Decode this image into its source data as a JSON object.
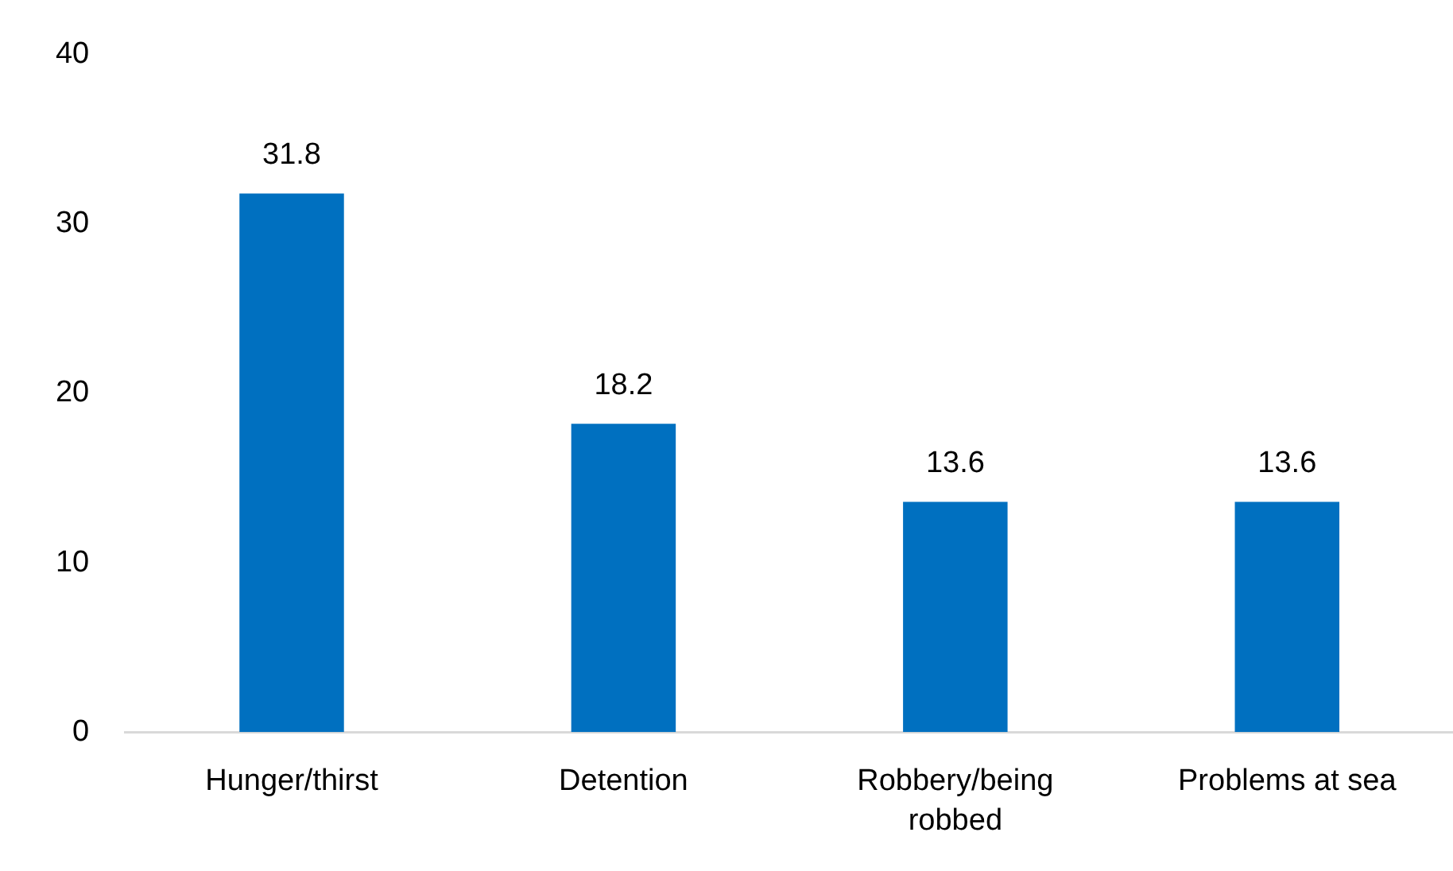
{
  "chart_data": {
    "type": "bar",
    "categories": [
      "Hunger/thirst",
      "Detention",
      "Robbery/being robbed",
      "Problems at sea"
    ],
    "values": [
      31.8,
      18.2,
      13.6,
      13.6
    ],
    "color": "#0070c0",
    "ylim": [
      0,
      40
    ],
    "yticks": [
      0,
      10,
      20,
      30,
      40
    ],
    "grid": false,
    "data_labels": true
  }
}
